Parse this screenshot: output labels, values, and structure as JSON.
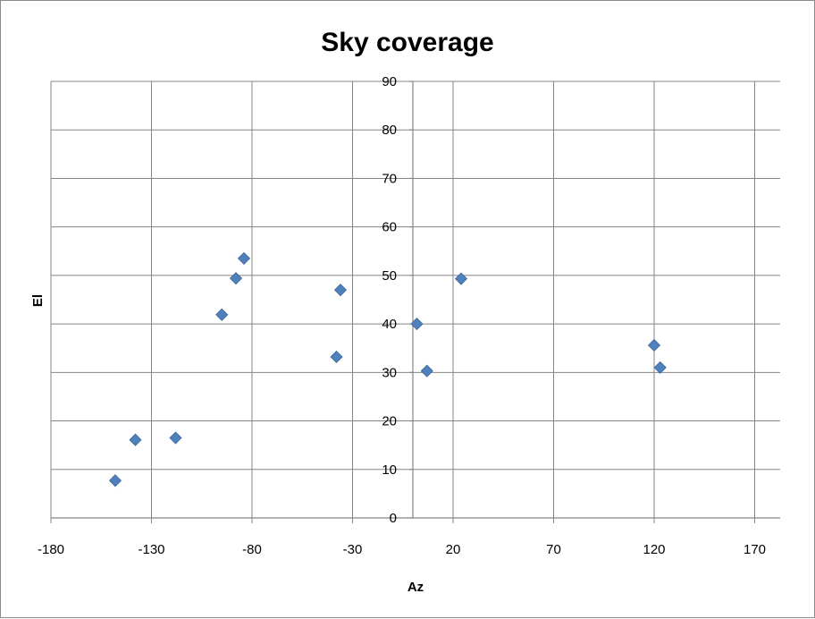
{
  "chart_data": {
    "type": "scatter",
    "title": "Sky coverage",
    "xlabel": "Az",
    "ylabel": "El",
    "xlim": [
      -180,
      180
    ],
    "ylim": [
      0,
      90
    ],
    "x_ticks": [
      -180,
      -130,
      -80,
      -30,
      20,
      70,
      120,
      170
    ],
    "y_ticks": [
      0,
      10,
      20,
      30,
      40,
      50,
      60,
      70,
      80,
      90
    ],
    "grid": true,
    "legend": "none",
    "marker": "diamond",
    "marker_color": "#4f81bd",
    "series": [
      {
        "points": [
          {
            "x": -148,
            "y": 7.7
          },
          {
            "x": -138,
            "y": 16.1
          },
          {
            "x": -118,
            "y": 16.5
          },
          {
            "x": -95,
            "y": 41.9
          },
          {
            "x": -88,
            "y": 49.4
          },
          {
            "x": -84,
            "y": 53.5
          },
          {
            "x": -36,
            "y": 47.0
          },
          {
            "x": -38,
            "y": 33.2
          },
          {
            "x": 2,
            "y": 40.0
          },
          {
            "x": 7,
            "y": 30.3
          },
          {
            "x": 24,
            "y": 49.3
          },
          {
            "x": 120,
            "y": 35.6
          },
          {
            "x": 123,
            "y": 31.0
          }
        ]
      }
    ]
  }
}
